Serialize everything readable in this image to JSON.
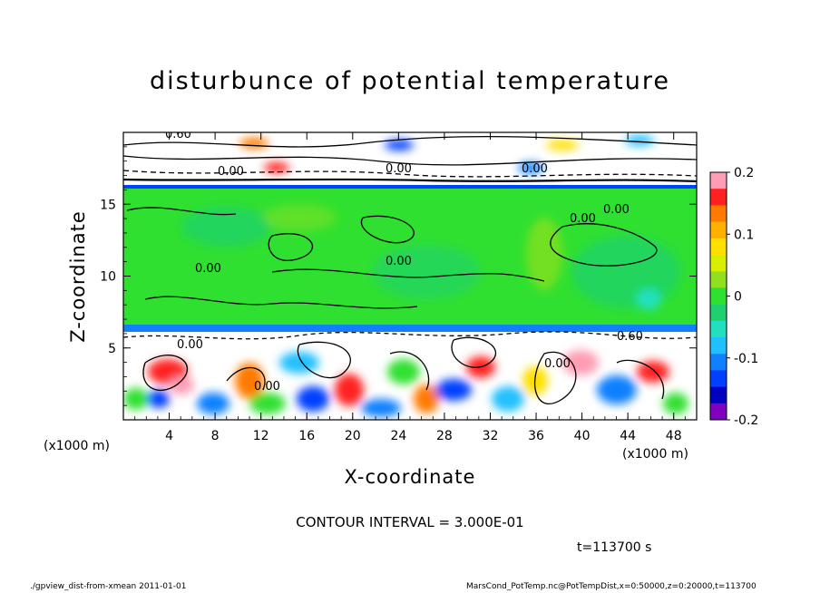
{
  "chart_data": {
    "type": "heatmap",
    "title": "disturbunce of potential temperature",
    "xlabel": "X-coordinate",
    "ylabel": "Z-coordinate",
    "x_unit_label": "(x1000 m)",
    "x_ticks": [
      4,
      8,
      12,
      16,
      20,
      24,
      28,
      32,
      36,
      40,
      44,
      48
    ],
    "y_ticks": [
      5,
      10,
      15
    ],
    "xlim": [
      0,
      50
    ],
    "ylim": [
      0,
      20
    ],
    "colorbar": {
      "ticks": [
        "0.2",
        "0.1",
        "0",
        "-0.1",
        "-0.2"
      ],
      "range": [
        -0.2,
        0.2
      ],
      "colors": [
        "#ff9db4",
        "#ff2020",
        "#ff7a00",
        "#ffb000",
        "#ffe000",
        "#d8f000",
        "#90e020",
        "#30e030",
        "#20d070",
        "#20e0c0",
        "#20c0ff",
        "#1080ff",
        "#0040ff",
        "#0000c0",
        "#8000c0"
      ]
    },
    "contour_labels": [
      "0.60",
      "0.00",
      "0.00",
      "0.00",
      "0.00",
      "0.00",
      "0.00",
      "0.00",
      "0.00",
      "0.60",
      "0.00",
      "0.00"
    ],
    "contour_interval_text": "CONTOUR INTERVAL = 3.000E-01",
    "time_text": "t=113700 s"
  },
  "footer": {
    "left": "./gpview_dist-from-xmean  2011-01-01",
    "right": "MarsCond_PotTemp.nc@PotTempDist,x=0:50000,z=0:20000,t=113700"
  }
}
